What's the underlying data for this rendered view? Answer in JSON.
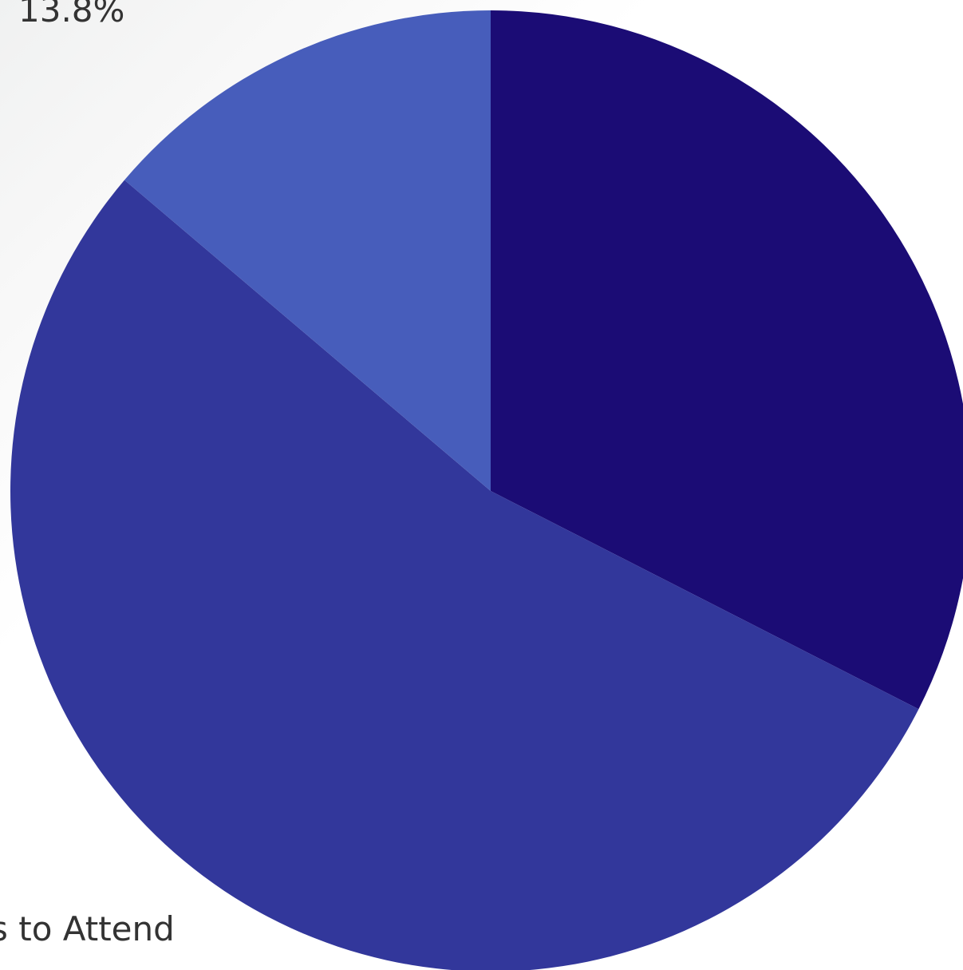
{
  "chart_data": {
    "type": "pie",
    "slices": [
      {
        "value": 32.5,
        "color": "#1b0c75"
      },
      {
        "value": 53.7,
        "color": "#32379b",
        "label": "s to Attend"
      },
      {
        "value": 13.8,
        "color": "#475dbb",
        "label": "13.8%"
      }
    ]
  }
}
